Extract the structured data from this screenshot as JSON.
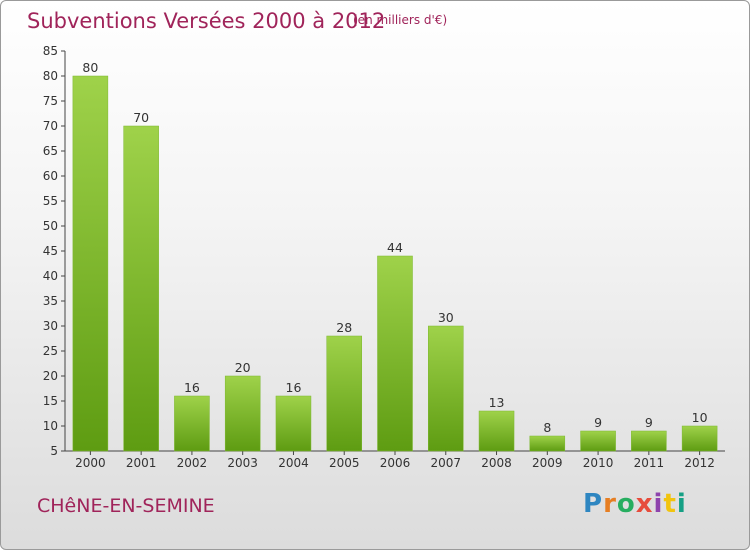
{
  "header": {
    "title": "Subventions Versées 2000 à 2012",
    "subtitle": "(en milliers d'€)"
  },
  "footer": {
    "commune": "CHêNE-EN-SEMINE",
    "logo": "Proxiti",
    "logo_colors": [
      "#2e86c1",
      "#e67e22",
      "#27ae60",
      "#e74c3c",
      "#8e44ad",
      "#f1c40f",
      "#16a085"
    ]
  },
  "chart_data": {
    "type": "bar",
    "categories": [
      "2000",
      "2001",
      "2002",
      "2003",
      "2004",
      "2005",
      "2006",
      "2007",
      "2008",
      "2009",
      "2010",
      "2011",
      "2012"
    ],
    "values": [
      80,
      70,
      16,
      20,
      16,
      28,
      44,
      30,
      13,
      8,
      9,
      9,
      10
    ],
    "title": "Subventions Versées 2000 à 2012",
    "ylim": [
      5,
      85
    ],
    "yticks": [
      5,
      10,
      15,
      20,
      25,
      30,
      35,
      40,
      45,
      50,
      55,
      60,
      65,
      70,
      75,
      80,
      85
    ],
    "grid": false,
    "colors": {
      "bar_top": "#9fd24a",
      "bar_bottom": "#5e9c12",
      "axis": "#444444"
    }
  }
}
